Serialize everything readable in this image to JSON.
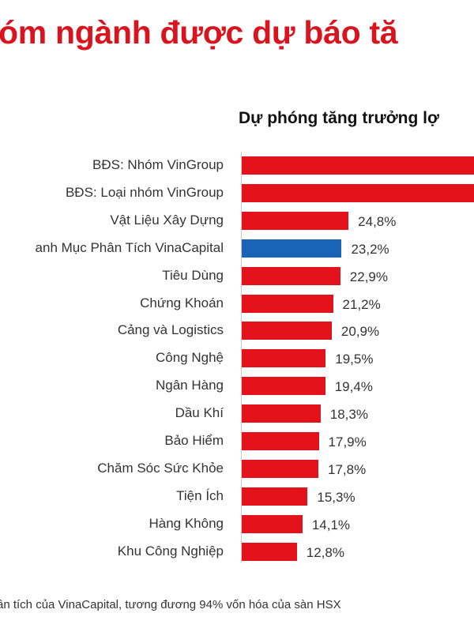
{
  "title": "óm ngành được dự báo tă",
  "chart_data": {
    "type": "bar",
    "orientation": "horizontal",
    "title": "Dự phóng tăng trưởng lợ",
    "categories": [
      "BĐS: Nhóm VinGroup",
      "BĐS: Loại nhóm VinGroup",
      "Vật Liệu Xây Dựng",
      "anh Mục Phân Tích VinaCapital",
      "Tiêu Dùng",
      "Chứng Khoán",
      "Cảng và Logistics",
      "Công Nghệ",
      "Ngân Hàng",
      "Dầu Khí",
      "Bảo Hiểm",
      "Chăm Sóc Sức Khỏe",
      "Tiện Ích",
      "Hàng Không",
      "Khu Công Nghiệp"
    ],
    "values": [
      null,
      null,
      24.8,
      23.2,
      22.9,
      21.2,
      20.9,
      19.5,
      19.4,
      18.3,
      17.9,
      17.8,
      15.3,
      14.1,
      12.8
    ],
    "value_labels": [
      "",
      "",
      "24,8%",
      "23,2%",
      "22,9%",
      "21,2%",
      "20,9%",
      "19,5%",
      "19,4%",
      "18,3%",
      "17,9%",
      "17,8%",
      "15,3%",
      "14,1%",
      "12,8%"
    ],
    "unit": "%",
    "colors": [
      "#e3121b",
      "#e3121b",
      "#e3121b",
      "#1a64b8",
      "#e3121b",
      "#e3121b",
      "#e3121b",
      "#e3121b",
      "#e3121b",
      "#e3121b",
      "#e3121b",
      "#e3121b",
      "#e3121b",
      "#e3121b",
      "#e3121b"
    ],
    "grid": false,
    "xlim": [
      0,
      55
    ]
  },
  "footnote": "ần tích của VinaCapital, tương đương 94% vốn hóa của sàn HSX"
}
